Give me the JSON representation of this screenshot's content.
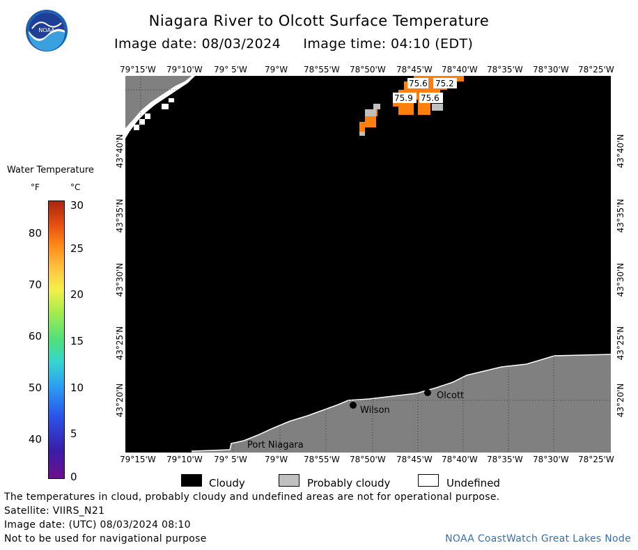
{
  "title": "Niagara River to Olcott Surface Temperature",
  "subtitle": "Image date: 08/03/2024     Image time: 04:10 (EDT)",
  "logo_text": "NOAA",
  "map": {
    "lon_labels": [
      "79°15'W",
      "79°10'W",
      "79° 5'W",
      "79°W",
      "78°55'W",
      "78°50'W",
      "78°45'W",
      "78°40'W",
      "78°35'W",
      "78°30'W",
      "78°25'W"
    ],
    "lat_labels": [
      "43°40'N",
      "43°35'N",
      "43°30'N",
      "43°25'N",
      "43°20'N"
    ],
    "places": [
      {
        "name": "Olcott"
      },
      {
        "name": "Wilson"
      },
      {
        "name": "Port Niagara"
      }
    ],
    "temperature_labels": [
      "75.6",
      "75.2",
      "75.9",
      "75.6"
    ],
    "colors": {
      "cloud": "#000000",
      "land": "#808080",
      "probably_cloudy": "#c0c0c0",
      "undefined": "#ffffff",
      "warm": "#ff7f0e"
    }
  },
  "legend": {
    "title": "Water Temperature",
    "unit_f": "°F",
    "unit_c": "°C",
    "f_ticks": [
      "80",
      "70",
      "60",
      "50",
      "40"
    ],
    "c_ticks": [
      "30",
      "25",
      "20",
      "15",
      "10",
      "5",
      "0"
    ],
    "keys": [
      {
        "label": "Cloudy",
        "color": "#000000"
      },
      {
        "label": "Probably cloudy",
        "color": "#c0c0c0"
      },
      {
        "label": "Undefined",
        "color": "#ffffff"
      }
    ]
  },
  "footer": {
    "line1": "The temperatures in cloud, probably cloudy and undefined areas are not for operational purpose.",
    "line2": "Satellite: VIIRS_N21",
    "line3": "Image date: (UTC) 08/03/2024  08:10",
    "line4": "Not to be used for navigational purpose",
    "credit": "NOAA CoastWatch Great Lakes Node"
  }
}
